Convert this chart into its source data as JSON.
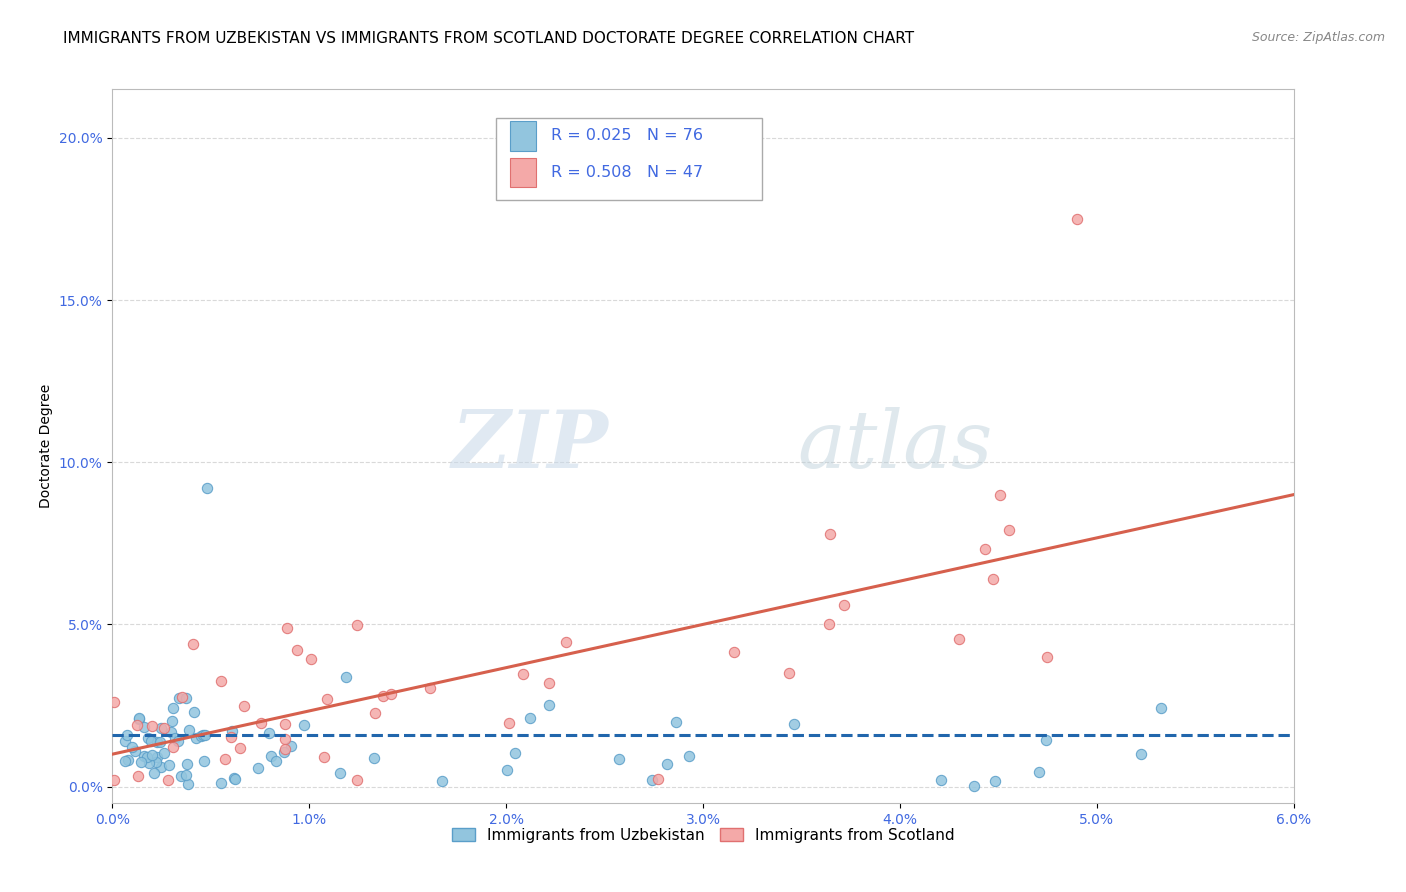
{
  "title": "IMMIGRANTS FROM UZBEKISTAN VS IMMIGRANTS FROM SCOTLAND DOCTORATE DEGREE CORRELATION CHART",
  "source": "Source: ZipAtlas.com",
  "xlabel": "",
  "ylabel": "Doctorate Degree",
  "xlim": [
    0.0,
    0.06
  ],
  "ylim": [
    -0.005,
    0.215
  ],
  "xticks": [
    0.0,
    0.01,
    0.02,
    0.03,
    0.04,
    0.05,
    0.06
  ],
  "xticklabels": [
    "0.0%",
    "1.0%",
    "2.0%",
    "3.0%",
    "4.0%",
    "5.0%",
    "6.0%"
  ],
  "yticks": [
    0.0,
    0.05,
    0.1,
    0.15,
    0.2
  ],
  "yticklabels": [
    "0.0%",
    "5.0%",
    "10.0%",
    "15.0%",
    "20.0%"
  ],
  "legend1_label": "Immigrants from Uzbekistan",
  "legend2_label": "Immigrants from Scotland",
  "R1": 0.025,
  "N1": 76,
  "R2": 0.508,
  "N2": 47,
  "color1": "#92c5de",
  "color2": "#f4a9a8",
  "line_color1": "#2166ac",
  "line_color2": "#d6604d",
  "watermark_zip": "ZIP",
  "watermark_atlas": "atlas",
  "background_color": "#ffffff",
  "grid_color": "#d0d0d0",
  "title_fontsize": 11,
  "axis_label_fontsize": 10,
  "tick_fontsize": 10,
  "tick_color": "#4169E1",
  "legend_R1_text": "R = 0.025",
  "legend_N1_text": "N = 76",
  "legend_R2_text": "R = 0.508",
  "legend_N2_text": "N = 47"
}
